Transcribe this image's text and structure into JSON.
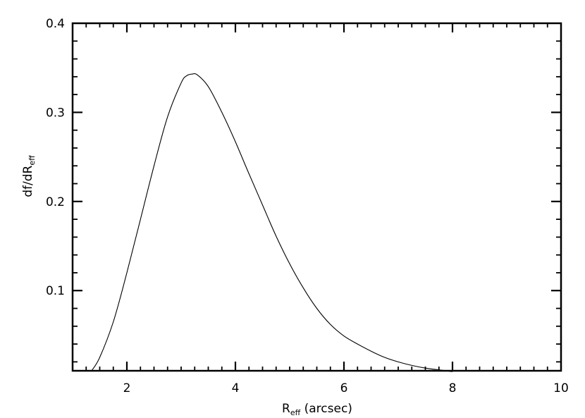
{
  "chart_data": {
    "type": "line",
    "title": "",
    "xlabel": {
      "main": "R",
      "sub": "eff",
      "suffix": " (arcsec)"
    },
    "ylabel": {
      "main": "df/dR",
      "sub": "eff"
    },
    "xlim": [
      1,
      10
    ],
    "ylim": [
      0.01,
      0.4
    ],
    "x_ticks": [
      2,
      4,
      6,
      8,
      10
    ],
    "x_tick_labels": [
      "2",
      "4",
      "6",
      "8",
      "10"
    ],
    "y_ticks": [
      0.1,
      0.2,
      0.3,
      0.4
    ],
    "y_tick_labels": [
      "0.1",
      "0.2",
      "0.3",
      "0.4"
    ],
    "grid": false,
    "series": [
      {
        "x": [
          1.35,
          1.5,
          1.75,
          2.0,
          2.25,
          2.5,
          2.75,
          3.0,
          3.1,
          3.2,
          3.3,
          3.5,
          3.75,
          4.0,
          4.25,
          4.5,
          4.75,
          5.0,
          5.25,
          5.5,
          5.75,
          6.0,
          6.25,
          6.5,
          6.75,
          7.0,
          7.25,
          7.5,
          7.75,
          8.0
        ],
        "y": [
          0.01,
          0.025,
          0.065,
          0.12,
          0.18,
          0.24,
          0.295,
          0.333,
          0.341,
          0.343,
          0.342,
          0.329,
          0.3,
          0.267,
          0.231,
          0.196,
          0.161,
          0.13,
          0.103,
          0.08,
          0.062,
          0.049,
          0.04,
          0.032,
          0.025,
          0.02,
          0.016,
          0.013,
          0.011,
          0.009
        ],
        "color": "#000000"
      }
    ]
  }
}
